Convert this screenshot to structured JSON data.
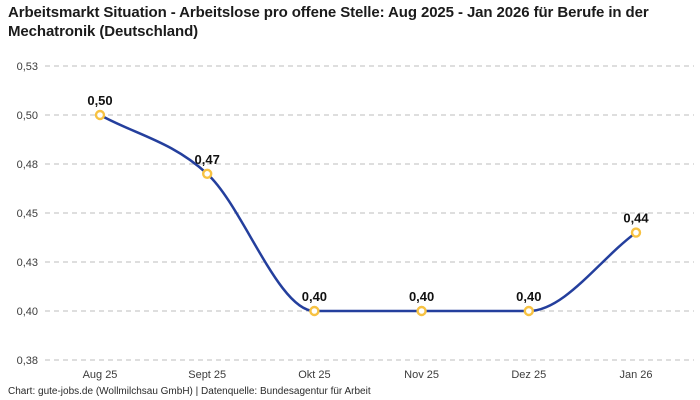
{
  "header": {
    "title": "Arbeitsmarkt Situation - Arbeitslose pro offene Stelle: Aug 2025 - Jan 2026 für Berufe in der Mechatronik (Deutschland)"
  },
  "footer": {
    "credit": "Chart: gute-jobs.de (Wollmilchsau GmbH) | Datenquelle: Bundesagentur für Arbeit"
  },
  "chart_data": {
    "type": "line",
    "title": "Arbeitsmarkt Situation - Arbeitslose pro offene Stelle: Aug 2025 - Jan 2026 für Berufe in der Mechatronik (Deutschland)",
    "categories": [
      "Aug 25",
      "Sept 25",
      "Okt 25",
      "Nov 25",
      "Dez 25",
      "Jan 26"
    ],
    "series": [
      {
        "name": "Arbeitslose pro offene Stelle",
        "values": [
          0.5,
          0.47,
          0.4,
          0.4,
          0.4,
          0.44
        ],
        "point_labels": [
          "0,50",
          "0,47",
          "0,40",
          "0,40",
          "0,40",
          "0,44"
        ]
      }
    ],
    "yticks": [
      {
        "value": 0.525,
        "label": "0,53"
      },
      {
        "value": 0.5,
        "label": "0,50"
      },
      {
        "value": 0.475,
        "label": "0,48"
      },
      {
        "value": 0.45,
        "label": "0,45"
      },
      {
        "value": 0.425,
        "label": "0,43"
      },
      {
        "value": 0.4,
        "label": "0,40"
      },
      {
        "value": 0.375,
        "label": "0,38"
      }
    ],
    "ylim": [
      0.375,
      0.525
    ],
    "xlabel": "",
    "ylabel": "",
    "grid": "dashed-horizontal",
    "legend": "none",
    "curve": "monotone-spline",
    "colors": {
      "line": "#243f9d",
      "marker_stroke": "#f7c242",
      "marker_fill": "#ffffff",
      "grid": "#c9c9c9",
      "point_label": "#111111",
      "axis_text": "#3c3c3c",
      "title_text": "#1b1b1b"
    }
  }
}
